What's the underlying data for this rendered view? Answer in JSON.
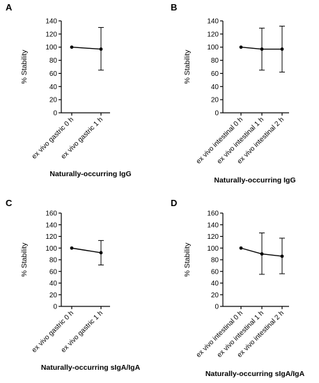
{
  "chart_data": [
    {
      "type": "line",
      "panel": "A",
      "categories": [
        "ex vivo gastric 0 h",
        "ex vivo gastric 1 h"
      ],
      "values": [
        100,
        97
      ],
      "error_bars": [
        null,
        [
          65,
          130
        ]
      ],
      "ylabel": "% Stability",
      "xlabel": "Naturally-occurring IgG",
      "ylim": [
        0,
        140
      ],
      "yticks": [
        "0",
        "20",
        "40",
        "60",
        "80",
        "100",
        "120",
        "140"
      ],
      "grid": false
    },
    {
      "type": "line",
      "panel": "B",
      "categories": [
        "ex vivo intestinal 0 h",
        "ex vivo intestinal 1 h",
        "ex vivo intestinal 2 h"
      ],
      "values": [
        100,
        97,
        97
      ],
      "error_bars": [
        null,
        [
          65,
          129
        ],
        [
          62,
          132
        ]
      ],
      "ylabel": "% Stability",
      "xlabel": "Naturally-occurring IgG",
      "ylim": [
        0,
        140
      ],
      "yticks": [
        "0",
        "20",
        "40",
        "60",
        "80",
        "100",
        "120",
        "140"
      ],
      "grid": false
    },
    {
      "type": "line",
      "panel": "C",
      "categories": [
        "ex vivo gastric 0 h",
        "ex vivo gastric 1 h"
      ],
      "values": [
        100,
        92
      ],
      "error_bars": [
        null,
        [
          71,
          113
        ]
      ],
      "ylabel": "% Stability",
      "xlabel": "Naturally-occurring sIgA/IgA",
      "ylim": [
        0,
        160
      ],
      "yticks": [
        "0",
        "20",
        "40",
        "60",
        "80",
        "100",
        "120",
        "140",
        "160"
      ],
      "grid": false
    },
    {
      "type": "line",
      "panel": "D",
      "categories": [
        "ex vivo intestinal 0 h",
        "ex vivo intestinal 1 h",
        "ex vivo intestinal 2 h"
      ],
      "values": [
        100,
        90,
        86
      ],
      "error_bars": [
        null,
        [
          55,
          126
        ],
        [
          56,
          117
        ]
      ],
      "ylabel": "% Stability",
      "xlabel": "Naturally-occurring sIgA/IgA",
      "ylim": [
        0,
        160
      ],
      "yticks": [
        "0",
        "20",
        "40",
        "60",
        "80",
        "100",
        "120",
        "140",
        "160"
      ],
      "grid": false
    }
  ]
}
